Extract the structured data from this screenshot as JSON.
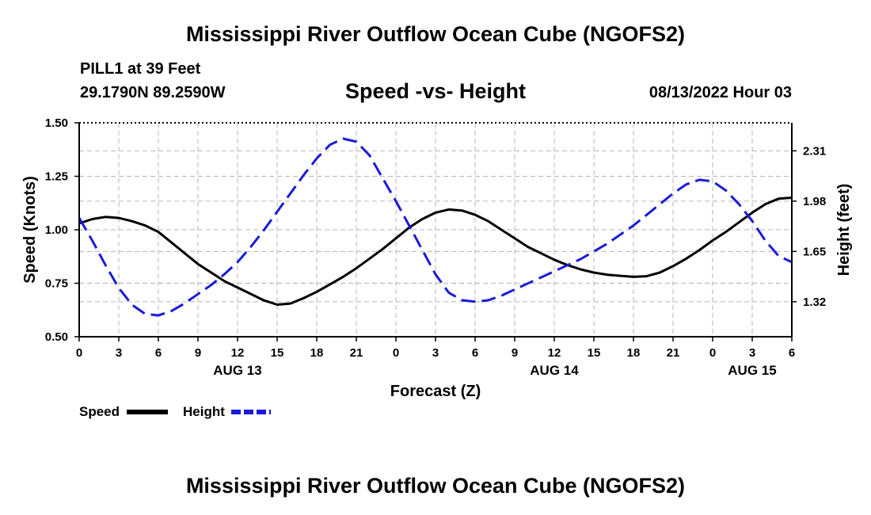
{
  "header": {
    "title": "Mississippi River Outflow Ocean Cube (NGOFS2)",
    "station": "PILL1 at 39 Feet",
    "coords": "29.1790N  89.2590W",
    "subtitle": "Speed -vs- Height",
    "datetime": "08/13/2022 Hour 03"
  },
  "footer": {
    "title": "Mississippi River Outflow Ocean Cube (NGOFS2)"
  },
  "legend": {
    "speed_label": "Speed",
    "height_label": "Height"
  },
  "colors": {
    "speed": "#000000",
    "height": "#1a1adb",
    "grid": "#b4b4b4"
  },
  "chart_data": {
    "type": "line",
    "xlabel": "Forecast (Z)",
    "ylabel": "Speed (Knots)",
    "y2label": "Height (feet)",
    "xlim": [
      0,
      54
    ],
    "ylim": [
      0.5,
      1.5
    ],
    "y2lim": [
      1.0904,
      2.4939
    ],
    "x_tick_values": [
      0,
      3,
      6,
      9,
      12,
      15,
      18,
      21,
      24,
      27,
      30,
      33,
      36,
      39,
      42,
      45,
      48,
      51,
      54
    ],
    "x_tick_labels": [
      "0",
      "3",
      "6",
      "9",
      "12",
      "15",
      "18",
      "21",
      "0",
      "3",
      "6",
      "9",
      "12",
      "15",
      "18",
      "21",
      "0",
      "3",
      "6"
    ],
    "day_labels": [
      {
        "x": 12,
        "label": "AUG 13"
      },
      {
        "x": 36,
        "label": "AUG 14"
      },
      {
        "x": 51,
        "label": "AUG 15"
      }
    ],
    "y_ticks": [
      "0.50",
      "0.75",
      "1.00",
      "1.25",
      "1.50"
    ],
    "y_tick_values": [
      0.5,
      0.75,
      1.0,
      1.25,
      1.5
    ],
    "y2_ticks": [
      "1.32",
      "1.65",
      "1.98",
      "2.31"
    ],
    "y2_tick_values": [
      1.32,
      1.65,
      1.98,
      2.31
    ],
    "series": [
      {
        "name": "Speed",
        "axis": "left",
        "x": [
          0,
          1,
          2,
          3,
          4,
          5,
          6,
          7,
          8,
          9,
          10,
          11,
          12,
          13,
          14,
          15,
          16,
          17,
          18,
          19,
          20,
          21,
          22,
          23,
          24,
          25,
          26,
          27,
          28,
          29,
          30,
          31,
          32,
          33,
          34,
          35,
          36,
          37,
          38,
          39,
          40,
          41,
          42,
          43,
          44,
          45,
          46,
          47,
          48,
          49,
          50,
          51,
          52,
          53,
          54
        ],
        "values": [
          1.03,
          1.05,
          1.06,
          1.055,
          1.04,
          1.02,
          0.99,
          0.94,
          0.89,
          0.84,
          0.8,
          0.76,
          0.73,
          0.7,
          0.67,
          0.65,
          0.655,
          0.68,
          0.71,
          0.745,
          0.78,
          0.82,
          0.865,
          0.91,
          0.96,
          1.01,
          1.05,
          1.08,
          1.095,
          1.09,
          1.07,
          1.04,
          1.0,
          0.96,
          0.92,
          0.89,
          0.86,
          0.835,
          0.815,
          0.8,
          0.79,
          0.785,
          0.78,
          0.783,
          0.8,
          0.83,
          0.865,
          0.905,
          0.95,
          0.99,
          1.035,
          1.08,
          1.12,
          1.145,
          1.15
        ]
      },
      {
        "name": "Height",
        "axis": "right",
        "x": [
          0,
          1,
          2,
          3,
          4,
          5,
          6,
          7,
          8,
          9,
          10,
          11,
          12,
          13,
          14,
          15,
          16,
          17,
          18,
          19,
          20,
          21,
          22,
          23,
          24,
          25,
          26,
          27,
          28,
          29,
          30,
          31,
          32,
          33,
          34,
          35,
          36,
          37,
          38,
          39,
          40,
          41,
          42,
          43,
          44,
          45,
          46,
          47,
          48,
          49,
          50,
          51,
          52,
          53,
          54
        ],
        "values": [
          1.87,
          1.72,
          1.56,
          1.41,
          1.3,
          1.24,
          1.23,
          1.26,
          1.31,
          1.37,
          1.43,
          1.5,
          1.58,
          1.68,
          1.79,
          1.91,
          2.03,
          2.15,
          2.26,
          2.35,
          2.39,
          2.37,
          2.28,
          2.13,
          1.98,
          1.82,
          1.66,
          1.5,
          1.38,
          1.33,
          1.32,
          1.33,
          1.36,
          1.4,
          1.44,
          1.48,
          1.52,
          1.56,
          1.6,
          1.65,
          1.7,
          1.76,
          1.82,
          1.89,
          1.96,
          2.03,
          2.09,
          2.12,
          2.11,
          2.05,
          1.96,
          1.85,
          1.72,
          1.62,
          1.58
        ]
      }
    ]
  }
}
